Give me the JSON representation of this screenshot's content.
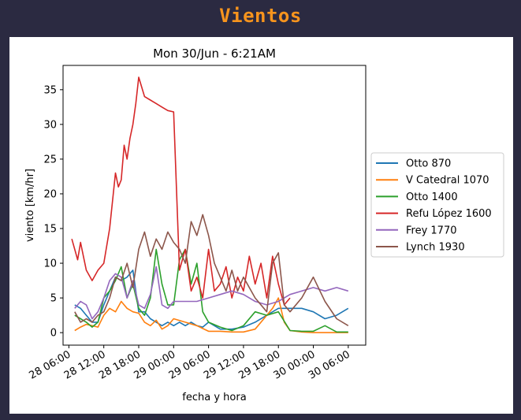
{
  "page": {
    "title": "Vientos"
  },
  "chart_data": {
    "type": "line",
    "title": "Mon 30/Jun - 6:21AM",
    "xlabel": "fecha y hora",
    "ylabel": "viento [km/hr]",
    "x_unit": "hours",
    "xlim": [
      "28 05:00",
      "30 09:00"
    ],
    "ylim": [
      -1.8,
      38.5
    ],
    "yticks": [
      0,
      5,
      10,
      15,
      20,
      25,
      30,
      35
    ],
    "xticks": [
      {
        "at": "28 06:00",
        "label": "28 06:00"
      },
      {
        "at": "28 12:00",
        "label": "28 12:00"
      },
      {
        "at": "28 18:00",
        "label": "28 18:00"
      },
      {
        "at": "29 00:00",
        "label": "29 00:00"
      },
      {
        "at": "29 06:00",
        "label": "29 06:00"
      },
      {
        "at": "29 12:00",
        "label": "29 12:00"
      },
      {
        "at": "29 18:00",
        "label": "29 18:00"
      },
      {
        "at": "30 00:00",
        "label": "30 00:00"
      },
      {
        "at": "30 06:00",
        "label": "30 06:00"
      }
    ],
    "grid": false,
    "legend_position": "right",
    "series": [
      {
        "name": "Otto 870",
        "color": "#1f77b4",
        "x": [
          "28 07:00",
          "28 08:00",
          "28 09:00",
          "28 10:00",
          "28 11:00",
          "28 12:00",
          "28 13:00",
          "28 14:00",
          "28 15:00",
          "28 16:00",
          "28 17:00",
          "28 18:00",
          "28 19:00",
          "28 20:00",
          "28 21:00",
          "28 22:00",
          "28 23:00",
          "29 00:00",
          "29 01:00",
          "29 02:00",
          "29 03:00",
          "29 04:00",
          "29 05:00",
          "29 06:00",
          "29 08:00",
          "29 10:00",
          "29 12:00",
          "29 14:00",
          "29 16:00",
          "29 18:00",
          "29 20:00",
          "29 22:00",
          "30 00:00",
          "30 02:00",
          "30 04:00",
          "30 06:00"
        ],
        "y": [
          4,
          3.5,
          2.5,
          1.5,
          1.5,
          4,
          6,
          8,
          7.5,
          8,
          9,
          3,
          3,
          2,
          1.5,
          1,
          1.5,
          1,
          1.5,
          1,
          1.5,
          1,
          0.8,
          1.5,
          0.5,
          0.5,
          0.8,
          1.5,
          2.5,
          3.5,
          3.5,
          3.5,
          3,
          2,
          2.5,
          3.5
        ]
      },
      {
        "name": "V Catedral 1070",
        "color": "#ff7f0e",
        "x": [
          "28 07:00",
          "28 08:00",
          "28 09:00",
          "28 10:00",
          "28 11:00",
          "28 12:00",
          "28 13:00",
          "28 14:00",
          "28 15:00",
          "28 16:00",
          "28 17:00",
          "28 18:00",
          "28 19:00",
          "28 20:00",
          "28 21:00",
          "28 22:00",
          "28 23:00",
          "29 00:00",
          "29 02:00",
          "29 04:00",
          "29 06:00",
          "29 08:00",
          "29 10:00",
          "29 12:00",
          "29 14:00",
          "29 16:00",
          "29 17:00",
          "29 18:00",
          "29 19:00",
          "29 20:00",
          "29 22:00",
          "30 00:00",
          "30 02:00",
          "30 04:00",
          "30 06:00"
        ],
        "y": [
          0.3,
          0.8,
          1.2,
          1,
          0.8,
          2.5,
          3.5,
          3,
          4.5,
          3.5,
          3,
          2.8,
          1.5,
          1,
          1.8,
          0.5,
          1,
          2,
          1.5,
          1,
          0.2,
          0.2,
          0.1,
          0.1,
          0.5,
          2.5,
          3.5,
          5,
          1.5,
          0.3,
          0.1,
          0,
          0,
          0,
          0
        ]
      },
      {
        "name": "Otto 1400",
        "color": "#2ca02c",
        "x": [
          "28 07:00",
          "28 08:00",
          "28 09:00",
          "28 10:00",
          "28 11:00",
          "28 12:00",
          "28 13:00",
          "28 14:00",
          "28 15:00",
          "28 16:00",
          "28 17:00",
          "28 18:00",
          "28 19:00",
          "28 20:00",
          "28 21:00",
          "28 22:00",
          "28 23:00",
          "29 00:00",
          "29 01:00",
          "29 02:00",
          "29 03:00",
          "29 04:00",
          "29 05:00",
          "29 06:00",
          "29 08:00",
          "29 10:00",
          "29 12:00",
          "29 14:00",
          "29 16:00",
          "29 18:00",
          "29 20:00",
          "29 22:00",
          "30 00:00",
          "30 02:00",
          "30 04:00",
          "30 06:00"
        ],
        "y": [
          2.5,
          2,
          1.5,
          0.8,
          1.5,
          5,
          6,
          7.5,
          9.5,
          5,
          7,
          3.5,
          2.5,
          5,
          12,
          7,
          4,
          4,
          10.5,
          12,
          7,
          10,
          3,
          1.5,
          0.8,
          0.3,
          1,
          3,
          2.5,
          3,
          0.3,
          0.2,
          0.2,
          1,
          0.1,
          0.1
        ]
      },
      {
        "name": "Refu López 1600",
        "color": "#d62728",
        "x": [
          "28 06:30",
          "28 07:00",
          "28 07:30",
          "28 08:00",
          "28 08:30",
          "28 09:00",
          "28 10:00",
          "28 11:00",
          "28 12:00",
          "28 13:00",
          "28 14:00",
          "28 14:30",
          "28 15:00",
          "28 15:30",
          "28 16:00",
          "28 16:30",
          "28 17:00",
          "28 17:30",
          "28 18:00",
          "28 19:00",
          "28 20:00",
          "28 21:00",
          "28 22:00",
          "28 23:00",
          "29 00:00",
          "29 01:00",
          "29 02:00",
          "29 03:00",
          "29 04:00",
          "29 05:00",
          "29 06:00",
          "29 07:00",
          "29 08:00",
          "29 09:00",
          "29 10:00",
          "29 11:00",
          "29 12:00",
          "29 13:00",
          "29 14:00",
          "29 15:00",
          "29 16:00",
          "29 17:00",
          "29 18:00",
          "29 19:00",
          "29 20:00"
        ],
        "y": [
          13.5,
          12,
          10.5,
          13,
          11,
          9,
          7.5,
          9,
          10,
          15,
          23,
          21,
          22,
          27,
          25,
          28,
          30,
          33,
          36.8,
          34,
          33.5,
          33,
          32.5,
          32,
          31.8,
          9,
          12,
          6,
          8,
          5,
          12,
          6,
          7,
          9.5,
          5,
          8,
          6,
          11,
          7,
          10,
          5,
          11,
          7,
          4,
          5
        ]
      },
      {
        "name": "Frey 1770",
        "color": "#9467bd",
        "x": [
          "28 07:00",
          "28 08:00",
          "28 09:00",
          "28 10:00",
          "28 11:00",
          "28 12:00",
          "28 13:00",
          "28 14:00",
          "28 15:00",
          "28 16:00",
          "28 17:00",
          "28 18:00",
          "28 19:00",
          "28 20:00",
          "28 21:00",
          "28 22:00",
          "28 23:00",
          "29 00:00",
          "29 02:00",
          "29 04:00",
          "29 06:00",
          "29 08:00",
          "29 10:00",
          "29 12:00",
          "29 14:00",
          "29 16:00",
          "29 18:00",
          "29 20:00",
          "29 22:00",
          "30 00:00",
          "30 02:00",
          "30 04:00",
          "30 06:00"
        ],
        "y": [
          3.5,
          4.5,
          4,
          2,
          3,
          5,
          7.5,
          8.5,
          8,
          5,
          7.5,
          4,
          3.5,
          5.5,
          9.5,
          4,
          3.5,
          4.5,
          4.5,
          4.5,
          5,
          5.5,
          6,
          5.5,
          4.5,
          4,
          4.5,
          5.5,
          6,
          6.5,
          6,
          6.5,
          6
        ]
      },
      {
        "name": "Lynch 1930",
        "color": "#8c564b",
        "x": [
          "28 07:00",
          "28 08:00",
          "28 09:00",
          "28 10:00",
          "28 11:00",
          "28 12:00",
          "28 13:00",
          "28 14:00",
          "28 15:00",
          "28 16:00",
          "28 17:00",
          "28 18:00",
          "28 19:00",
          "28 20:00",
          "28 21:00",
          "28 22:00",
          "28 23:00",
          "29 00:00",
          "29 01:00",
          "29 02:00",
          "29 03:00",
          "29 04:00",
          "29 05:00",
          "29 06:00",
          "29 07:00",
          "29 08:00",
          "29 09:00",
          "29 10:00",
          "29 11:00",
          "29 12:00",
          "29 14:00",
          "29 16:00",
          "29 17:00",
          "29 18:00",
          "29 19:00",
          "29 20:00",
          "29 22:00",
          "30 00:00",
          "30 02:00",
          "30 04:00",
          "30 06:00"
        ],
        "y": [
          3,
          1.5,
          2,
          1.5,
          2.5,
          3,
          5,
          8,
          7.5,
          10,
          6.5,
          12,
          14.5,
          11,
          13.5,
          12,
          14.5,
          13,
          12,
          10,
          16,
          14,
          17,
          14,
          10,
          8,
          6,
          9,
          6,
          8,
          5,
          3,
          10,
          11.5,
          4,
          3,
          5,
          8,
          4.5,
          2,
          1
        ]
      }
    ]
  }
}
